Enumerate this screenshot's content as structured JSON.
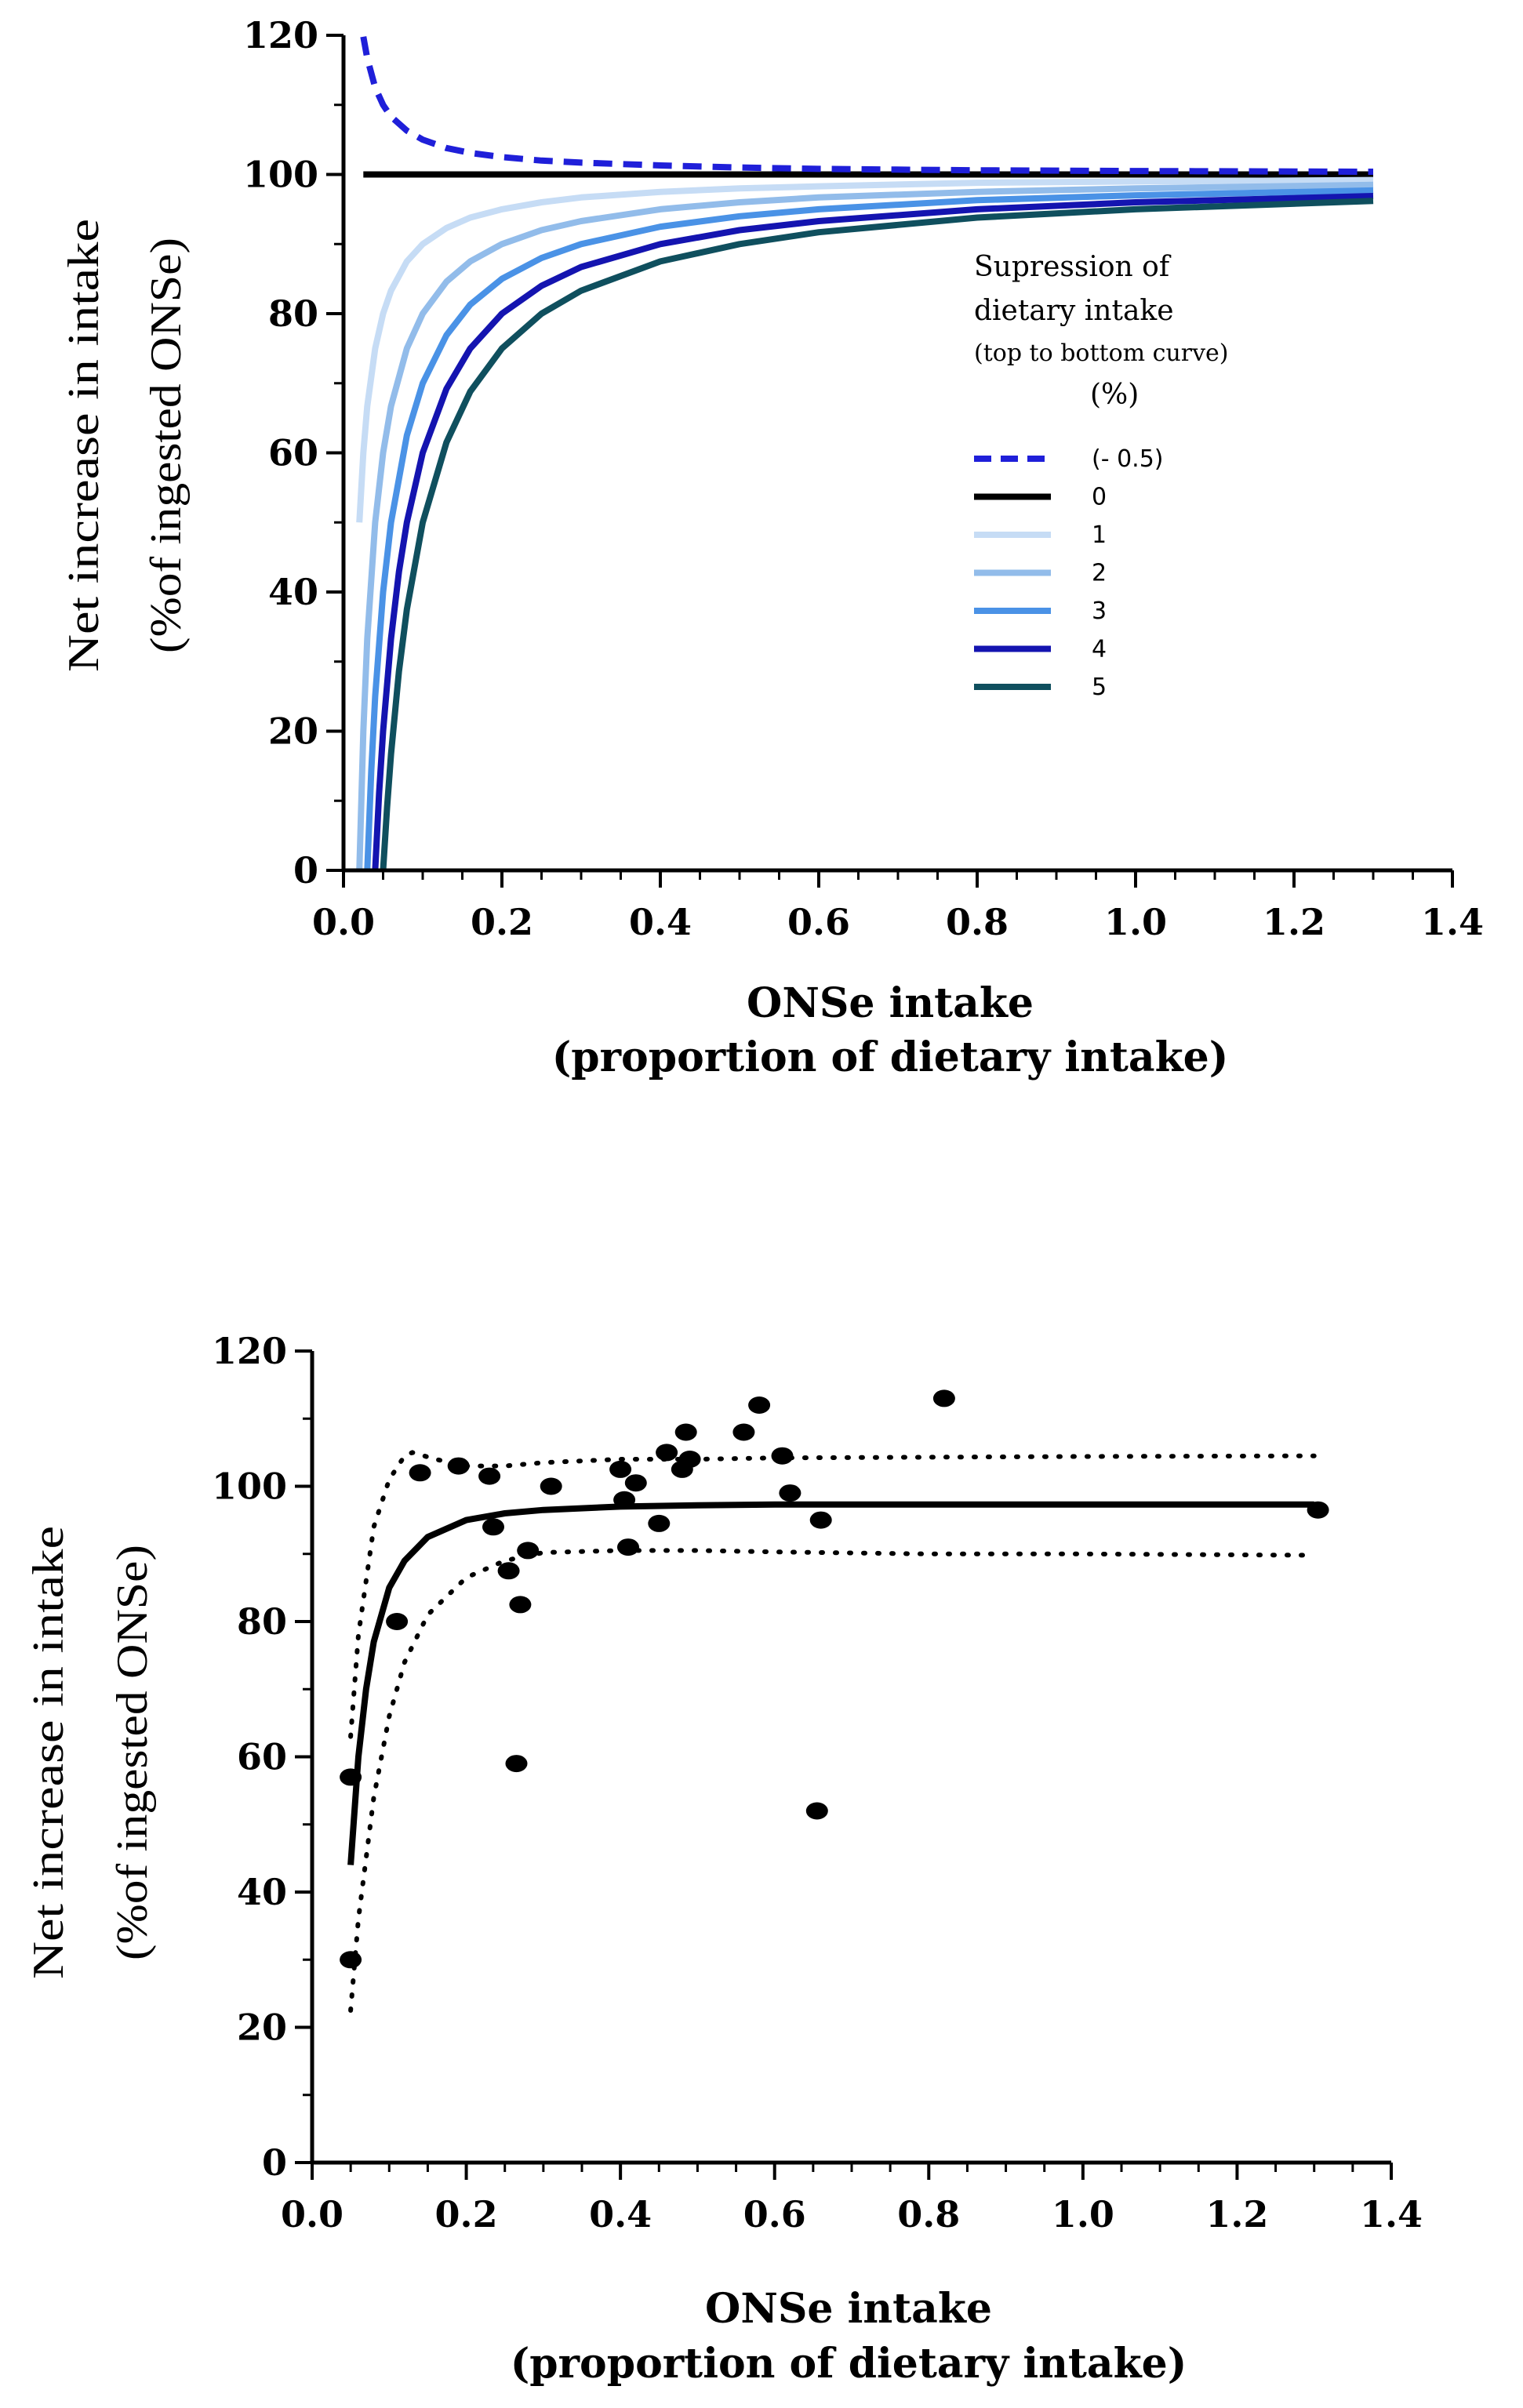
{
  "chart_data": [
    {
      "type": "line",
      "title": "",
      "xlabel_line1": "ONSe intake",
      "xlabel_line2": "(proportion of dietary intake)",
      "ylabel_line1": "Net increase in intake",
      "ylabel_line2": "(%of ingested ONSe)",
      "xlim": [
        0,
        1.4
      ],
      "ylim": [
        0,
        120
      ],
      "x_ticks": [
        "0.0",
        "0.2",
        "0.4",
        "0.6",
        "0.8",
        "1.0",
        "1.2",
        "1.4"
      ],
      "y_ticks": [
        "0",
        "20",
        "40",
        "60",
        "80",
        "100",
        "120"
      ],
      "legend": {
        "title_line1": "Supression of",
        "title_line2": "dietary intake",
        "title_line3": "(top to bottom curve)",
        "title_line4": "(%)",
        "placement": "right"
      },
      "series": [
        {
          "name": "(- 0.5)",
          "color": "#1f1fd9",
          "dashed": true,
          "x": [
            0.025,
            0.03,
            0.04,
            0.05,
            0.06,
            0.08,
            0.1,
            0.13,
            0.16,
            0.2,
            0.25,
            0.3,
            0.4,
            0.5,
            0.6,
            0.8,
            1.0,
            1.3
          ],
          "y": [
            119.8,
            116.7,
            112.5,
            110.0,
            108.3,
            106.3,
            105.0,
            103.8,
            103.1,
            102.5,
            102.0,
            101.7,
            101.3,
            101.0,
            100.8,
            100.6,
            100.5,
            100.4
          ]
        },
        {
          "name": "0",
          "color": "#000000",
          "dashed": false,
          "x": [
            0.025,
            1.3
          ],
          "y": [
            100,
            100
          ]
        },
        {
          "name": "1",
          "color": "#c6dcf5",
          "dashed": false,
          "x": [
            0.02,
            0.025,
            0.03,
            0.04,
            0.05,
            0.06,
            0.08,
            0.1,
            0.13,
            0.16,
            0.2,
            0.25,
            0.3,
            0.4,
            0.5,
            0.6,
            0.8,
            1.0,
            1.3
          ],
          "y": [
            50.0,
            60.0,
            66.7,
            75.0,
            80.0,
            83.3,
            87.5,
            90.0,
            92.3,
            93.8,
            95.0,
            96.0,
            96.7,
            97.5,
            98.0,
            98.3,
            98.8,
            99.0,
            99.2
          ]
        },
        {
          "name": "2",
          "color": "#92bcea",
          "dashed": false,
          "x": [
            0.02,
            0.025,
            0.03,
            0.04,
            0.05,
            0.06,
            0.08,
            0.1,
            0.13,
            0.16,
            0.2,
            0.25,
            0.3,
            0.4,
            0.5,
            0.6,
            0.8,
            1.0,
            1.3
          ],
          "y": [
            0.0,
            20.0,
            33.3,
            50.0,
            60.0,
            66.7,
            75.0,
            80.0,
            84.6,
            87.5,
            90.0,
            92.0,
            93.3,
            95.0,
            96.0,
            96.7,
            97.5,
            98.0,
            98.5
          ]
        },
        {
          "name": "3",
          "color": "#4a92e6",
          "dashed": false,
          "x": [
            0.03,
            0.035,
            0.04,
            0.05,
            0.06,
            0.08,
            0.1,
            0.13,
            0.16,
            0.2,
            0.25,
            0.3,
            0.4,
            0.5,
            0.6,
            0.8,
            1.0,
            1.3
          ],
          "y": [
            0.0,
            14.3,
            25.0,
            40.0,
            50.0,
            62.5,
            70.0,
            76.9,
            81.3,
            85.0,
            88.0,
            90.0,
            92.5,
            94.0,
            95.0,
            96.3,
            97.0,
            97.7
          ]
        },
        {
          "name": "4",
          "color": "#1414b0",
          "dashed": false,
          "x": [
            0.04,
            0.045,
            0.05,
            0.06,
            0.07,
            0.08,
            0.1,
            0.13,
            0.16,
            0.2,
            0.25,
            0.3,
            0.4,
            0.5,
            0.6,
            0.8,
            1.0,
            1.3
          ],
          "y": [
            0.0,
            11.1,
            20.0,
            33.3,
            42.9,
            50.0,
            60.0,
            69.2,
            75.0,
            80.0,
            84.0,
            86.7,
            90.0,
            92.0,
            93.3,
            95.0,
            96.0,
            96.9
          ]
        },
        {
          "name": "5",
          "color": "#0f4f5e",
          "dashed": false,
          "x": [
            0.05,
            0.055,
            0.06,
            0.07,
            0.08,
            0.1,
            0.13,
            0.16,
            0.2,
            0.25,
            0.3,
            0.4,
            0.5,
            0.6,
            0.8,
            1.0,
            1.3
          ],
          "y": [
            0.0,
            9.1,
            16.7,
            28.6,
            37.5,
            50.0,
            61.5,
            68.8,
            75.0,
            80.0,
            83.3,
            87.5,
            90.0,
            91.7,
            93.8,
            95.0,
            96.2
          ]
        }
      ]
    },
    {
      "type": "scatter",
      "title": "",
      "xlabel_line1": "ONSe intake",
      "xlabel_line2": "(proportion of dietary intake)",
      "ylabel_line1": "Net increase in intake",
      "ylabel_line2": "(%of ingested ONSe)",
      "xlim": [
        0,
        1.4
      ],
      "ylim": [
        0,
        120
      ],
      "x_ticks": [
        "0.0",
        "0.2",
        "0.4",
        "0.6",
        "0.8",
        "1.0",
        "1.2",
        "1.4"
      ],
      "y_ticks": [
        "0",
        "20",
        "40",
        "60",
        "80",
        "100",
        "120"
      ],
      "points": {
        "x": [
          0.05,
          0.05,
          0.11,
          0.14,
          0.19,
          0.23,
          0.235,
          0.255,
          0.27,
          0.265,
          0.28,
          0.31,
          0.4,
          0.405,
          0.41,
          0.42,
          0.45,
          0.46,
          0.48,
          0.485,
          0.49,
          0.56,
          0.58,
          0.61,
          0.62,
          0.66,
          0.655,
          0.82,
          1.305
        ],
        "y": [
          57,
          30,
          80,
          102,
          103,
          101.5,
          94,
          87.5,
          82.5,
          59,
          90.5,
          100,
          102.5,
          98,
          91,
          100.5,
          94.5,
          105,
          102.5,
          108,
          104,
          108,
          112,
          104.5,
          99,
          95,
          52,
          113,
          96.5
        ]
      },
      "fit": {
        "x": [
          0.05,
          0.06,
          0.07,
          0.08,
          0.1,
          0.12,
          0.15,
          0.2,
          0.25,
          0.3,
          0.4,
          0.5,
          0.6,
          0.8,
          1.0,
          1.3
        ],
        "y": [
          44,
          60,
          70,
          77,
          85,
          89,
          92.5,
          95,
          96,
          96.5,
          97,
          97.2,
          97.3,
          97.3,
          97.3,
          97.3
        ]
      },
      "upper_band": {
        "x": [
          0.05,
          0.06,
          0.08,
          0.1,
          0.12,
          0.13,
          0.16,
          0.2,
          0.25,
          0.3,
          0.4,
          0.5,
          0.6,
          0.8,
          1.0,
          1.3
        ],
        "y": [
          63,
          78,
          94,
          101,
          104.5,
          105,
          104,
          103,
          103,
          103.5,
          104,
          104,
          104.2,
          104.3,
          104.4,
          104.5
        ]
      },
      "lower_band": {
        "x": [
          0.05,
          0.06,
          0.08,
          0.1,
          0.12,
          0.15,
          0.2,
          0.25,
          0.3,
          0.4,
          0.5,
          0.6,
          0.8,
          1.0,
          1.3
        ],
        "y": [
          22.5,
          36,
          54,
          66,
          74,
          81,
          86.5,
          89,
          90.2,
          90.5,
          90.5,
          90.3,
          90,
          90,
          89.8
        ]
      }
    }
  ]
}
